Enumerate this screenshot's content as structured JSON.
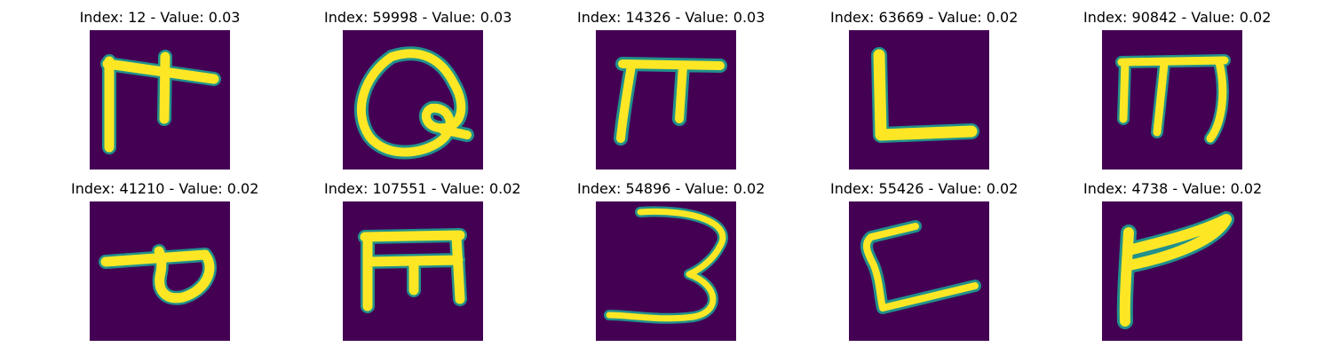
{
  "colors": {
    "background": "#440154",
    "stroke_core": "#fde725",
    "stroke_mid": "#a0da39",
    "stroke_edge": "#21918c"
  },
  "panels": [
    {
      "title": "Index: 12 - Value: 0.03",
      "glyph": "glyph-12"
    },
    {
      "title": "Index: 59998 - Value: 0.03",
      "glyph": "glyph-59998"
    },
    {
      "title": "Index: 14326 - Value: 0.03",
      "glyph": "glyph-14326"
    },
    {
      "title": "Index: 63669 - Value: 0.02",
      "glyph": "glyph-63669"
    },
    {
      "title": "Index: 90842 - Value: 0.02",
      "glyph": "glyph-90842"
    },
    {
      "title": "Index: 41210 - Value: 0.02",
      "glyph": "glyph-41210"
    },
    {
      "title": "Index: 107551 - Value: 0.02",
      "glyph": "glyph-107551"
    },
    {
      "title": "Index: 54896 - Value: 0.02",
      "glyph": "glyph-54896"
    },
    {
      "title": "Index: 55426 - Value: 0.02",
      "glyph": "glyph-55426"
    },
    {
      "title": "Index: 4738 - Value: 0.02",
      "glyph": "glyph-4738"
    }
  ]
}
